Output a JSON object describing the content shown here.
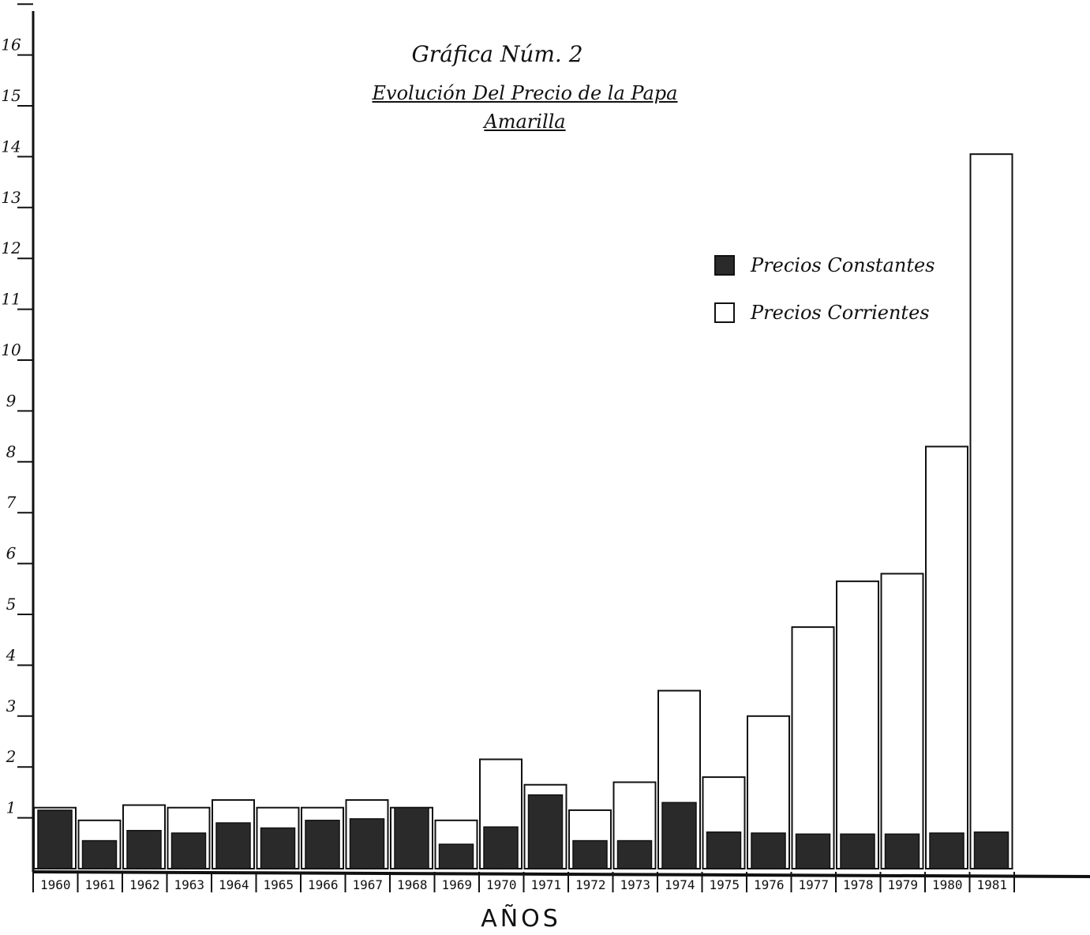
{
  "chart_data": {
    "type": "bar",
    "title_lines": [
      "Gráfica Núm. 2",
      "Evolución Del Precio de la Papa",
      "Amarilla"
    ],
    "xlabel": "AÑOS",
    "ylabel": "",
    "ylim": [
      0,
      18
    ],
    "y_ticks": [
      {
        "value": 1,
        "label": "1"
      },
      {
        "value": 2,
        "label": "2"
      },
      {
        "value": 3,
        "label": "3"
      },
      {
        "value": 4,
        "label": "4"
      },
      {
        "value": 5,
        "label": "5"
      },
      {
        "value": 6,
        "label": "6"
      },
      {
        "value": 7,
        "label": "7"
      },
      {
        "value": 8,
        "label": "8"
      },
      {
        "value": 9,
        "label": "9"
      },
      {
        "value": 10,
        "label": "10"
      },
      {
        "value": 11,
        "label": "11"
      },
      {
        "value": 12,
        "label": "12"
      },
      {
        "value": 13,
        "label": "13"
      },
      {
        "value": 14,
        "label": "14"
      },
      {
        "value": 15,
        "label": "15"
      },
      {
        "value": 16,
        "label": "16"
      },
      {
        "value": 17,
        "label": ""
      },
      {
        "value": 18,
        "label": ""
      }
    ],
    "categories": [
      "1960",
      "1961",
      "1962",
      "1963",
      "1964",
      "1965",
      "1966",
      "1967",
      "1968",
      "1969",
      "1970",
      "1971",
      "1972",
      "1973",
      "1974",
      "1975",
      "1976",
      "1977",
      "1978",
      "1979",
      "1980",
      "1981"
    ],
    "series": [
      {
        "name": "Precios Corrientes",
        "values": [
          1.2,
          0.95,
          1.25,
          1.2,
          1.35,
          1.2,
          1.2,
          1.35,
          1.2,
          0.95,
          2.15,
          1.65,
          1.15,
          1.7,
          3.5,
          1.8,
          3.0,
          4.75,
          5.65,
          5.8,
          8.3,
          14.05
        ]
      },
      {
        "name": "Precios Constantes",
        "values": [
          1.15,
          0.55,
          0.75,
          0.7,
          0.9,
          0.8,
          0.95,
          0.98,
          1.2,
          0.48,
          0.82,
          1.45,
          0.55,
          0.55,
          1.3,
          0.72,
          0.7,
          0.68,
          0.68,
          0.68,
          0.7,
          0.72
        ]
      }
    ],
    "legend_position": "right",
    "colors": {
      "constant": "#2a2a2a",
      "current": "#ffffff",
      "ink": "#111111"
    },
    "grid": false
  },
  "text": {
    "title1": "Gráfica Núm. 2",
    "title2": "Evolución Del Precio de la Papa",
    "title3": "Amarilla",
    "legend_constant": "Precios Constantes",
    "legend_current": "Precios Corrientes",
    "xlabel": "AÑOS"
  }
}
